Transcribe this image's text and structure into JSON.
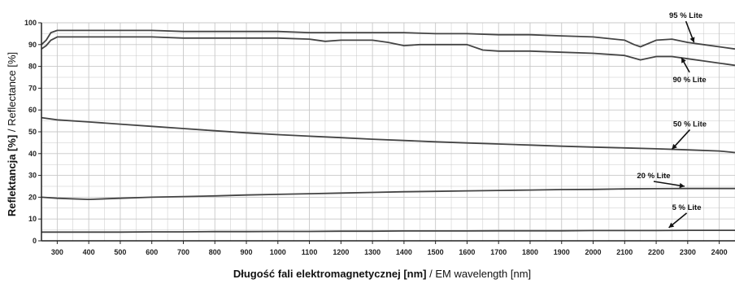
{
  "chart_data": {
    "type": "line",
    "xlabel_bold": "Długość fali elektromagnetycznej [nm]",
    "xlabel_rest": "/ EM wavelength [nm]",
    "ylabel_bold": "Reflektancja [%]",
    "ylabel_rest": "/ Reflectance [%]",
    "xlim": [
      250,
      2450
    ],
    "ylim": [
      0,
      100
    ],
    "x_ticks": [
      300,
      400,
      500,
      600,
      700,
      800,
      900,
      1000,
      1100,
      1200,
      1300,
      1400,
      1500,
      1600,
      1700,
      1800,
      1900,
      2000,
      2100,
      2200,
      2300,
      2400
    ],
    "y_ticks": [
      0,
      10,
      20,
      30,
      40,
      50,
      60,
      70,
      80,
      90,
      100
    ],
    "grid": true,
    "legend": "none",
    "series": [
      {
        "name": "95 % Lite",
        "x": [
          250,
          265,
          280,
          300,
          400,
          500,
          600,
          700,
          800,
          900,
          1000,
          1100,
          1200,
          1300,
          1400,
          1500,
          1600,
          1700,
          1800,
          1900,
          2000,
          2100,
          2130,
          2150,
          2200,
          2250,
          2300,
          2350,
          2400,
          2450
        ],
        "values": [
          90,
          92,
          95.5,
          96.5,
          96.5,
          96.5,
          96.5,
          96,
          96,
          96,
          96,
          95.5,
          95.5,
          95.5,
          95.5,
          95,
          95,
          94.5,
          94.5,
          94,
          93.5,
          92,
          90,
          89,
          92,
          92.5,
          91,
          90,
          89,
          88
        ]
      },
      {
        "name": "90 % Lite",
        "x": [
          250,
          265,
          280,
          300,
          400,
          500,
          600,
          700,
          800,
          900,
          1000,
          1100,
          1150,
          1200,
          1300,
          1350,
          1400,
          1450,
          1500,
          1600,
          1650,
          1700,
          1800,
          1900,
          2000,
          2100,
          2150,
          2200,
          2250,
          2300,
          2350,
          2400,
          2450
        ],
        "values": [
          88,
          89.5,
          92,
          93.5,
          93.5,
          93.5,
          93.5,
          93,
          93,
          93,
          93,
          92.5,
          91.5,
          92,
          92,
          91,
          89.5,
          90,
          90,
          90,
          87.5,
          87,
          87,
          86.5,
          86,
          85,
          83,
          84.5,
          84.5,
          83.5,
          82.5,
          81.5,
          80.5
        ]
      },
      {
        "name": "50 % Lite",
        "x": [
          250,
          300,
          400,
          500,
          600,
          700,
          800,
          900,
          1000,
          1100,
          1200,
          1300,
          1400,
          1500,
          1600,
          1700,
          1800,
          1900,
          2000,
          2100,
          2200,
          2300,
          2400,
          2450
        ],
        "values": [
          56.5,
          55.5,
          54.5,
          53.5,
          52.5,
          51.5,
          50.5,
          49.5,
          48.7,
          48,
          47.3,
          46.6,
          46,
          45.4,
          44.9,
          44.4,
          43.9,
          43.4,
          43,
          42.6,
          42.2,
          41.7,
          41.2,
          40.5
        ]
      },
      {
        "name": "20 % Lite",
        "x": [
          250,
          300,
          400,
          500,
          600,
          700,
          800,
          900,
          1000,
          1100,
          1200,
          1300,
          1400,
          1500,
          1600,
          1700,
          1800,
          1900,
          2000,
          2100,
          2200,
          2300,
          2400,
          2450
        ],
        "values": [
          20,
          19.5,
          19,
          19.5,
          20,
          20.3,
          20.6,
          21,
          21.3,
          21.6,
          21.9,
          22.2,
          22.5,
          22.7,
          22.9,
          23.1,
          23.3,
          23.5,
          23.6,
          23.8,
          23.9,
          24,
          24,
          24
        ]
      },
      {
        "name": "5 % Lite",
        "x": [
          250,
          300,
          400,
          500,
          600,
          700,
          800,
          900,
          1000,
          1100,
          1200,
          1300,
          1400,
          1500,
          1600,
          1700,
          1800,
          1900,
          2000,
          2100,
          2200,
          2300,
          2400,
          2450
        ],
        "values": [
          4,
          4,
          4,
          4,
          4.1,
          4.1,
          4.2,
          4.2,
          4.3,
          4.3,
          4.4,
          4.4,
          4.5,
          4.5,
          4.5,
          4.6,
          4.6,
          4.6,
          4.7,
          4.7,
          4.7,
          4.8,
          4.8,
          4.8
        ]
      }
    ],
    "annotations": [
      {
        "text": "95 % Lite",
        "series": "95 % Lite",
        "point_x": 2320,
        "point_y": 91
      },
      {
        "text": "90 % Lite",
        "series": "90 % Lite",
        "point_x": 2280,
        "point_y": 84
      },
      {
        "text": "50 % Lite",
        "series": "50 % Lite",
        "point_x": 2250,
        "point_y": 42
      },
      {
        "text": "20 % Lite",
        "series": "20 % Lite",
        "point_x": 2290,
        "point_y": 25
      },
      {
        "text": "5 % Lite",
        "series": "5 % Lite",
        "point_x": 2240,
        "point_y": 6
      }
    ],
    "colors": {
      "line": "#444444",
      "grid": "#c8c8c8",
      "axis": "#222222"
    }
  }
}
